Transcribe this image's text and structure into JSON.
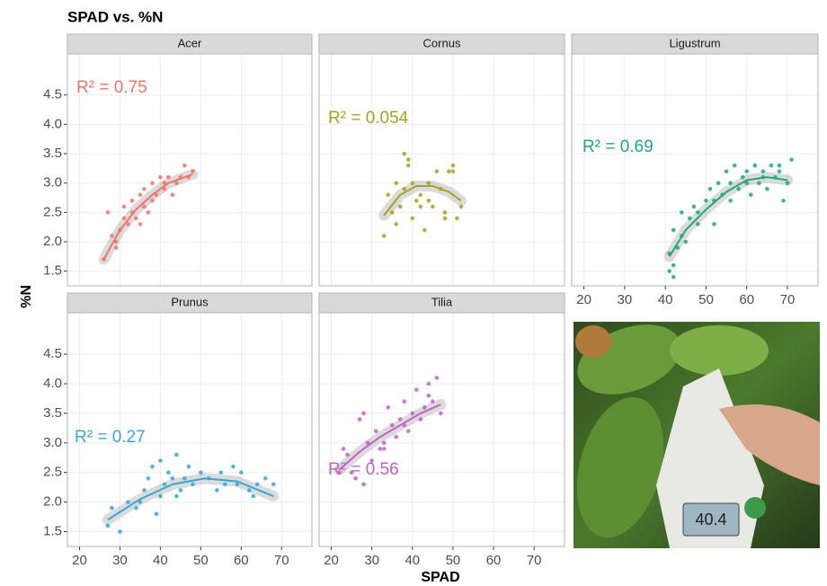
{
  "title": "SPAD vs. %N",
  "x_label": "SPAD",
  "y_label": "%N",
  "photo": {
    "display": "40.4"
  },
  "chart_data": [
    {
      "type": "scatter",
      "title": "Acer",
      "annotation": "R² = 0.75",
      "color": "#ef746a",
      "x": [
        26,
        27,
        28,
        29,
        30,
        31,
        32,
        33,
        33,
        34,
        35,
        36,
        36,
        37,
        38,
        39,
        40,
        41,
        42,
        43,
        44,
        45,
        46,
        47,
        48,
        29,
        31,
        35,
        38,
        41
      ],
      "y": [
        1.7,
        2.5,
        2.1,
        1.9,
        2.2,
        2.6,
        2.3,
        2.5,
        2.7,
        2.4,
        2.8,
        2.6,
        2.9,
        2.5,
        3.0,
        2.8,
        3.1,
        2.9,
        3.1,
        2.8,
        3.0,
        3.1,
        3.3,
        3.1,
        3.2,
        2.0,
        2.4,
        2.3,
        2.7,
        3.0
      ],
      "fit": {
        "x": [
          26,
          30,
          34,
          38,
          42,
          46,
          48
        ],
        "y": [
          1.7,
          2.2,
          2.55,
          2.8,
          3.0,
          3.1,
          3.15
        ]
      },
      "xlim": [
        17,
        77.5
      ],
      "ylim": [
        1.25,
        5.2
      ],
      "xticks": [
        20,
        30,
        40,
        50,
        60,
        70
      ],
      "yticks": [
        1.5,
        {
          "value": 2,
          "label": "2.0"
        },
        2.5,
        {
          "value": 3,
          "label": "3.0"
        },
        3.5,
        {
          "value": 4,
          "label": "4.0"
        },
        4.5
      ],
      "grid": true
    },
    {
      "type": "scatter",
      "title": "Cornus",
      "annotation": "R² = 0.054",
      "color": "#a3a520",
      "x": [
        33,
        34,
        35,
        36,
        37,
        38,
        38,
        39,
        40,
        41,
        42,
        43,
        44,
        45,
        46,
        47,
        48,
        49,
        50,
        51,
        52,
        36,
        40,
        44,
        48,
        50,
        42,
        39
      ],
      "y": [
        2.1,
        2.8,
        2.5,
        3.0,
        2.6,
        3.5,
        2.9,
        3.4,
        2.4,
        2.7,
        2.8,
        2.2,
        3.0,
        2.6,
        3.2,
        2.9,
        2.5,
        3.2,
        3.3,
        2.4,
        2.6,
        2.3,
        3.0,
        2.7,
        2.4,
        3.2,
        2.6,
        3.3
      ],
      "fit": {
        "x": [
          33,
          37,
          41,
          45,
          49,
          52
        ],
        "y": [
          2.45,
          2.8,
          2.95,
          2.95,
          2.85,
          2.7
        ]
      },
      "xlim": [
        17,
        77.5
      ],
      "ylim": [
        1.25,
        5.2
      ],
      "xticks": [
        20,
        30,
        40,
        50,
        60,
        70
      ],
      "yticks": [
        1.5,
        {
          "value": 2,
          "label": "2.0"
        },
        2.5,
        {
          "value": 3,
          "label": "3.0"
        },
        3.5,
        {
          "value": 4,
          "label": "4.0"
        },
        4.5
      ],
      "grid": true
    },
    {
      "type": "scatter",
      "title": "Ligustrum",
      "annotation": "R² = 0.69",
      "color": "#22a67a",
      "x": [
        41,
        41,
        42,
        42,
        43,
        44,
        45,
        46,
        47,
        48,
        50,
        51,
        52,
        53,
        54,
        55,
        56,
        57,
        58,
        59,
        60,
        61,
        62,
        63,
        64,
        65,
        66,
        67,
        68,
        69,
        70,
        71,
        42,
        44,
        48,
        52,
        56,
        60,
        64,
        68
      ],
      "y": [
        1.5,
        1.8,
        1.6,
        2.2,
        1.9,
        2.5,
        2.0,
        2.4,
        2.6,
        2.3,
        2.7,
        2.9,
        2.3,
        3.0,
        2.8,
        3.2,
        2.7,
        3.3,
        2.9,
        3.1,
        3.2,
        2.8,
        3.3,
        3.0,
        3.2,
        2.9,
        3.3,
        3.1,
        3.2,
        2.7,
        3.0,
        3.4,
        1.4,
        2.1,
        2.5,
        2.7,
        3.0,
        3.0,
        3.1,
        3.3
      ],
      "fit": {
        "x": [
          41,
          45,
          50,
          55,
          60,
          65,
          70
        ],
        "y": [
          1.75,
          2.2,
          2.55,
          2.85,
          3.05,
          3.1,
          3.05
        ]
      },
      "xlim": [
        17,
        77.5
      ],
      "ylim": [
        1.25,
        5.2
      ],
      "xticks": [
        20,
        30,
        40,
        50,
        60,
        70
      ],
      "yticks": [
        1.5,
        {
          "value": 2,
          "label": "2.0"
        },
        2.5,
        {
          "value": 3,
          "label": "3.0"
        },
        3.5,
        {
          "value": 4,
          "label": "4.0"
        },
        4.5
      ],
      "grid": true
    },
    {
      "type": "scatter",
      "title": "Prunus",
      "annotation": "R² = 0.27",
      "color": "#3aa6d8",
      "x": [
        27,
        28,
        30,
        32,
        34,
        36,
        37,
        38,
        39,
        40,
        40,
        41,
        42,
        43,
        44,
        45,
        46,
        48,
        50,
        52,
        54,
        56,
        58,
        60,
        62,
        64,
        66,
        68,
        35,
        44,
        47,
        55,
        59,
        63
      ],
      "y": [
        1.6,
        1.9,
        1.5,
        2.0,
        1.9,
        2.2,
        2.4,
        2.6,
        1.8,
        2.1,
        2.7,
        2.3,
        2.5,
        2.4,
        2.8,
        2.2,
        2.4,
        2.3,
        2.5,
        2.4,
        2.2,
        2.3,
        2.6,
        2.5,
        2.2,
        2.3,
        2.4,
        2.3,
        2.0,
        2.1,
        2.6,
        2.5,
        2.3,
        2.1
      ],
      "fit": {
        "x": [
          27,
          35,
          43,
          51,
          59,
          68
        ],
        "y": [
          1.7,
          2.05,
          2.3,
          2.4,
          2.35,
          2.1
        ]
      },
      "xlim": [
        17,
        77.5
      ],
      "ylim": [
        1.25,
        5.2
      ],
      "xticks": [
        20,
        30,
        40,
        50,
        60,
        70
      ],
      "yticks": [
        1.5,
        {
          "value": 2,
          "label": "2.0"
        },
        2.5,
        {
          "value": 3,
          "label": "3.0"
        },
        3.5,
        {
          "value": 4,
          "label": "4.0"
        },
        4.5
      ],
      "grid": true
    },
    {
      "type": "scatter",
      "title": "Tilia",
      "annotation": "R² = 0.56",
      "color": "#c062c8",
      "x": [
        22,
        23,
        24,
        25,
        26,
        27,
        28,
        29,
        30,
        31,
        32,
        33,
        34,
        35,
        36,
        37,
        38,
        39,
        40,
        41,
        42,
        43,
        44,
        45,
        46,
        47,
        28,
        33,
        38,
        44
      ],
      "y": [
        2.5,
        2.9,
        2.8,
        2.5,
        2.4,
        3.4,
        2.3,
        3.0,
        2.7,
        3.2,
        2.9,
        3.0,
        3.6,
        3.3,
        3.1,
        3.4,
        3.7,
        3.2,
        3.5,
        3.9,
        3.4,
        3.6,
        4.0,
        3.7,
        4.1,
        3.5,
        3.5,
        2.9,
        3.3,
        3.8
      ],
      "fit": {
        "x": [
          22,
          27,
          32,
          37,
          42,
          47
        ],
        "y": [
          2.55,
          2.85,
          3.1,
          3.3,
          3.5,
          3.65
        ]
      },
      "xlim": [
        17,
        77.5
      ],
      "ylim": [
        1.25,
        5.2
      ],
      "xticks": [
        20,
        30,
        40,
        50,
        60,
        70
      ],
      "yticks": [
        1.5,
        {
          "value": 2,
          "label": "2.0"
        },
        2.5,
        {
          "value": 3,
          "label": "3.0"
        },
        3.5,
        {
          "value": 4,
          "label": "4.0"
        },
        4.5
      ],
      "grid": true
    }
  ]
}
